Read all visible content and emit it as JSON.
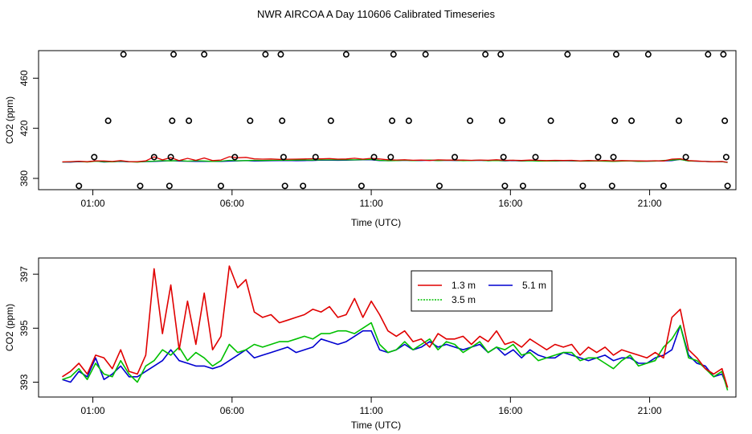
{
  "title": "NWR AIRCOA A  Day 110606  Calibrated Timeseries",
  "chart_data": [
    {
      "type": "scatter",
      "xlabel": "Time (UTC)",
      "ylabel": "CO2 (ppm)",
      "xlim": [
        -0.95,
        24.1
      ],
      "ylim": [
        371,
        482
      ],
      "xticks": [
        {
          "v": 1,
          "label": "01:00"
        },
        {
          "v": 6,
          "label": "06:00"
        },
        {
          "v": 11,
          "label": "11:00"
        },
        {
          "v": 16,
          "label": "16:00"
        },
        {
          "v": 21,
          "label": "21:00"
        }
      ],
      "yticks": [
        {
          "v": 380,
          "label": "380"
        },
        {
          "v": 420,
          "label": "420"
        },
        {
          "v": 460,
          "label": "460"
        }
      ],
      "outliers": [
        {
          "x": 0.5,
          "y": 374
        },
        {
          "x": 1.05,
          "y": 397
        },
        {
          "x": 1.55,
          "y": 426
        },
        {
          "x": 2.1,
          "y": 479
        },
        {
          "x": 2.7,
          "y": 374
        },
        {
          "x": 3.2,
          "y": 397
        },
        {
          "x": 3.75,
          "y": 374
        },
        {
          "x": 3.8,
          "y": 397
        },
        {
          "x": 3.85,
          "y": 426
        },
        {
          "x": 3.9,
          "y": 479
        },
        {
          "x": 4.45,
          "y": 426
        },
        {
          "x": 5.0,
          "y": 479
        },
        {
          "x": 5.6,
          "y": 374
        },
        {
          "x": 6.1,
          "y": 397
        },
        {
          "x": 6.65,
          "y": 426
        },
        {
          "x": 7.2,
          "y": 479
        },
        {
          "x": 7.75,
          "y": 479
        },
        {
          "x": 7.8,
          "y": 426
        },
        {
          "x": 7.85,
          "y": 397
        },
        {
          "x": 7.9,
          "y": 374
        },
        {
          "x": 8.55,
          "y": 374
        },
        {
          "x": 9.0,
          "y": 397
        },
        {
          "x": 9.55,
          "y": 426
        },
        {
          "x": 10.1,
          "y": 479
        },
        {
          "x": 10.65,
          "y": 374
        },
        {
          "x": 11.1,
          "y": 397
        },
        {
          "x": 11.7,
          "y": 397
        },
        {
          "x": 11.75,
          "y": 426
        },
        {
          "x": 11.8,
          "y": 479
        },
        {
          "x": 12.35,
          "y": 426
        },
        {
          "x": 12.95,
          "y": 479
        },
        {
          "x": 13.45,
          "y": 374
        },
        {
          "x": 14.0,
          "y": 397
        },
        {
          "x": 14.55,
          "y": 426
        },
        {
          "x": 15.1,
          "y": 479
        },
        {
          "x": 15.65,
          "y": 479
        },
        {
          "x": 15.7,
          "y": 426
        },
        {
          "x": 15.75,
          "y": 397
        },
        {
          "x": 15.8,
          "y": 374
        },
        {
          "x": 16.45,
          "y": 374
        },
        {
          "x": 16.9,
          "y": 397
        },
        {
          "x": 17.45,
          "y": 426
        },
        {
          "x": 18.05,
          "y": 479
        },
        {
          "x": 18.6,
          "y": 374
        },
        {
          "x": 19.15,
          "y": 397
        },
        {
          "x": 19.65,
          "y": 374
        },
        {
          "x": 19.7,
          "y": 397
        },
        {
          "x": 19.75,
          "y": 426
        },
        {
          "x": 19.8,
          "y": 479
        },
        {
          "x": 20.35,
          "y": 426
        },
        {
          "x": 20.95,
          "y": 479
        },
        {
          "x": 21.5,
          "y": 374
        },
        {
          "x": 22.05,
          "y": 426
        },
        {
          "x": 22.3,
          "y": 397
        },
        {
          "x": 23.1,
          "y": 479
        },
        {
          "x": 23.65,
          "y": 479
        },
        {
          "x": 23.7,
          "y": 426
        },
        {
          "x": 23.75,
          "y": 397
        },
        {
          "x": 23.8,
          "y": 374
        }
      ],
      "series_band": {
        "center": 394.5,
        "note_series": [
          "1.3 m",
          "3.5 m",
          "5.1 m"
        ]
      }
    },
    {
      "type": "line",
      "xlabel": "Time (UTC)",
      "ylabel": "CO2 (ppm)",
      "xlim": [
        -0.95,
        24.1
      ],
      "ylim": [
        392.45,
        397.6
      ],
      "xticks": [
        {
          "v": 1,
          "label": "01:00"
        },
        {
          "v": 6,
          "label": "06:00"
        },
        {
          "v": 11,
          "label": "11:00"
        },
        {
          "v": 16,
          "label": "16:00"
        },
        {
          "v": 21,
          "label": "21:00"
        }
      ],
      "yticks": [
        {
          "v": 393,
          "label": "393"
        },
        {
          "v": 395,
          "label": "395"
        },
        {
          "v": 397,
          "label": "397"
        }
      ],
      "legend": {
        "position": "top-center",
        "entries": [
          {
            "name": "1.3 m",
            "color": "#e00000"
          },
          {
            "name": "3.5 m",
            "color": "#00c000"
          },
          {
            "name": "5.1 m",
            "color": "#0000d0"
          }
        ]
      },
      "x": [
        -0.1,
        0.2,
        0.5,
        0.8,
        1.1,
        1.4,
        1.7,
        2.0,
        2.3,
        2.6,
        2.9,
        3.2,
        3.5,
        3.8,
        4.1,
        4.4,
        4.7,
        5.0,
        5.3,
        5.6,
        5.9,
        6.2,
        6.5,
        6.8,
        7.1,
        7.4,
        7.7,
        8.0,
        8.3,
        8.6,
        8.9,
        9.2,
        9.5,
        9.8,
        10.1,
        10.4,
        10.7,
        11.0,
        11.3,
        11.6,
        11.9,
        12.2,
        12.5,
        12.8,
        13.1,
        13.4,
        13.7,
        14.0,
        14.3,
        14.6,
        14.9,
        15.2,
        15.5,
        15.8,
        16.1,
        16.4,
        16.7,
        17.0,
        17.3,
        17.6,
        17.9,
        18.2,
        18.5,
        18.8,
        19.1,
        19.4,
        19.7,
        20.0,
        20.3,
        20.6,
        20.9,
        21.2,
        21.5,
        21.8,
        22.1,
        22.4,
        22.7,
        23.0,
        23.3,
        23.6,
        23.8
      ],
      "series": [
        {
          "name": "1.3 m",
          "color": "#e00000",
          "values": [
            393.2,
            393.4,
            393.7,
            393.3,
            394.0,
            393.9,
            393.5,
            394.2,
            393.4,
            393.3,
            394.0,
            397.2,
            394.8,
            396.6,
            394.2,
            396.0,
            394.4,
            396.3,
            394.2,
            394.7,
            397.3,
            396.5,
            396.8,
            395.6,
            395.4,
            395.5,
            395.2,
            395.3,
            395.4,
            395.5,
            395.7,
            395.6,
            395.8,
            395.4,
            395.5,
            396.1,
            395.4,
            396.0,
            395.5,
            394.9,
            394.7,
            394.9,
            394.5,
            394.6,
            394.3,
            394.8,
            394.6,
            394.6,
            394.7,
            394.4,
            394.7,
            394.5,
            394.9,
            394.4,
            394.5,
            394.3,
            394.6,
            394.4,
            394.2,
            394.4,
            394.3,
            394.4,
            394.0,
            394.3,
            394.1,
            394.3,
            394.0,
            394.2,
            394.1,
            394.0,
            393.9,
            394.1,
            393.9,
            395.4,
            395.7,
            394.2,
            393.9,
            393.5,
            393.3,
            393.5,
            392.8
          ]
        },
        {
          "name": "3.5 m",
          "color": "#00c000",
          "values": [
            393.1,
            393.2,
            393.5,
            393.1,
            393.7,
            393.3,
            393.2,
            393.8,
            393.3,
            393.0,
            393.6,
            393.8,
            394.2,
            394.0,
            394.3,
            393.8,
            394.1,
            393.9,
            393.6,
            393.8,
            394.4,
            394.1,
            394.2,
            394.4,
            394.3,
            394.4,
            394.5,
            394.5,
            394.6,
            394.7,
            394.6,
            394.8,
            394.8,
            394.9,
            394.9,
            394.8,
            395.0,
            395.2,
            394.4,
            394.1,
            394.2,
            394.5,
            394.2,
            394.4,
            394.6,
            394.2,
            394.5,
            394.4,
            394.1,
            394.3,
            394.5,
            394.1,
            394.3,
            394.2,
            394.4,
            394.0,
            394.1,
            393.8,
            393.9,
            394.0,
            394.1,
            394.1,
            393.8,
            393.9,
            393.9,
            393.7,
            393.5,
            393.8,
            394.0,
            393.6,
            393.7,
            393.8,
            394.3,
            394.6,
            395.1,
            393.9,
            393.8,
            393.5,
            393.2,
            393.4,
            392.7
          ]
        },
        {
          "name": "5.1 m",
          "color": "#0000d0",
          "values": [
            393.1,
            393.0,
            393.4,
            393.2,
            393.9,
            393.1,
            393.3,
            393.6,
            393.2,
            393.2,
            393.4,
            393.6,
            393.8,
            394.2,
            393.8,
            393.7,
            393.6,
            393.6,
            393.5,
            393.6,
            393.8,
            394.0,
            394.2,
            393.9,
            394.0,
            394.1,
            394.2,
            394.3,
            394.1,
            394.2,
            394.3,
            394.6,
            394.5,
            394.4,
            394.5,
            394.7,
            394.9,
            394.9,
            394.2,
            394.1,
            394.2,
            394.4,
            394.2,
            394.3,
            394.5,
            394.3,
            394.4,
            394.3,
            394.2,
            394.3,
            394.4,
            394.1,
            394.3,
            394.0,
            394.2,
            393.9,
            394.2,
            394.0,
            393.9,
            393.9,
            394.1,
            394.0,
            393.9,
            393.8,
            393.9,
            394.0,
            393.8,
            393.9,
            393.9,
            393.7,
            393.7,
            393.9,
            394.0,
            394.2,
            395.1,
            394.0,
            393.7,
            393.6,
            393.2,
            393.3,
            392.8
          ]
        }
      ]
    }
  ]
}
